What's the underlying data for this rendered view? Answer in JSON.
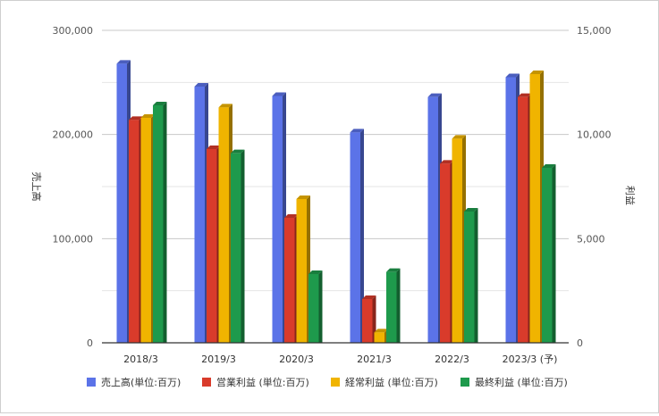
{
  "chart_data": {
    "type": "bar",
    "categories": [
      "2018/3",
      "2019/3",
      "2020/3",
      "2021/3",
      "2022/3",
      "2023/3 (予)"
    ],
    "series": [
      {
        "name": "売上高(単位:百万)",
        "axis": "left",
        "color": "#5b73e8",
        "values": [
          268000,
          246000,
          237000,
          202000,
          236000,
          255000
        ]
      },
      {
        "name": "営業利益 (単位:百万)",
        "axis": "right",
        "color": "#d93b2b",
        "values": [
          10700,
          9300,
          6000,
          2100,
          8600,
          11800
        ]
      },
      {
        "name": "経常利益 (単位:百万)",
        "axis": "right",
        "color": "#f0b400",
        "values": [
          10800,
          11300,
          6900,
          500,
          9800,
          12900
        ]
      },
      {
        "name": "最終利益 (単位:百万)",
        "axis": "right",
        "color": "#1e9a4c",
        "values": [
          11400,
          9100,
          3300,
          3400,
          6300,
          8400
        ]
      }
    ],
    "left_axis": {
      "label": "売上高",
      "min": 0,
      "max": 300000,
      "ticks": [
        "0",
        "100,000",
        "200,000",
        "300,000"
      ]
    },
    "right_axis": {
      "label": "利益",
      "min": 0,
      "max": 15000,
      "ticks": [
        "0",
        "5,000",
        "10,000",
        "15,000"
      ]
    },
    "grid": true,
    "legend_position": "bottom"
  }
}
